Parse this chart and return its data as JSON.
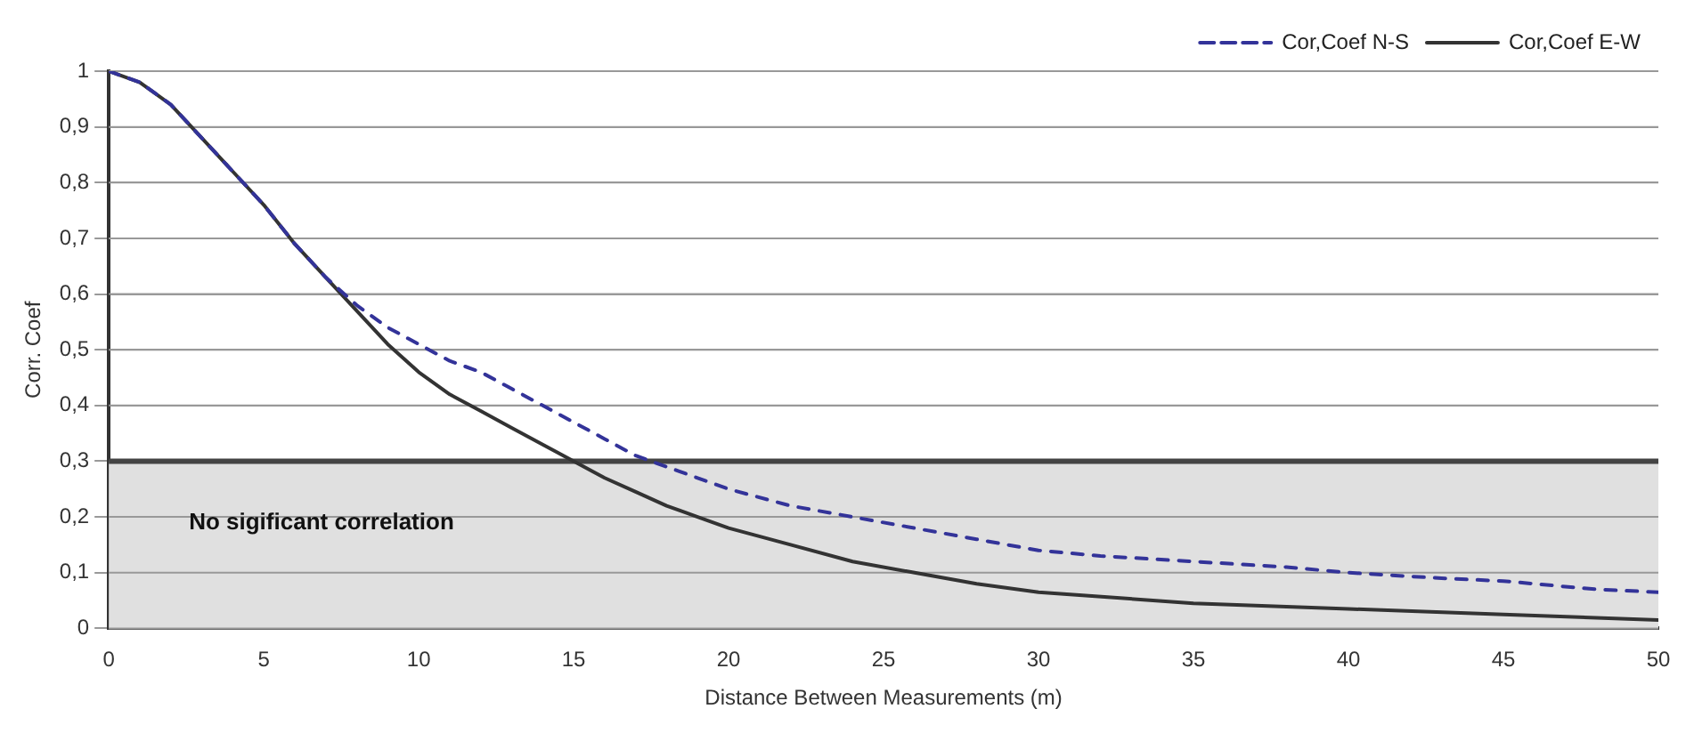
{
  "chart_data": {
    "type": "line",
    "xlabel": "Distance Between Measurements (m)",
    "ylabel": "Corr. Coef",
    "xlim": [
      0,
      50
    ],
    "xticks": [
      0,
      5,
      10,
      15,
      20,
      25,
      30,
      35,
      40,
      45,
      50
    ],
    "ylim": [
      0,
      1
    ],
    "yticks": [
      {
        "value": 0,
        "label": "0"
      },
      {
        "value": 0.1,
        "label": "0,1"
      },
      {
        "value": 0.2,
        "label": "0,2"
      },
      {
        "value": 0.3,
        "label": "0,3"
      },
      {
        "value": 0.4,
        "label": "0,4"
      },
      {
        "value": 0.5,
        "label": "0,5"
      },
      {
        "value": 0.6,
        "label": "0,6"
      },
      {
        "value": 0.7,
        "label": "0,7"
      },
      {
        "value": 0.8,
        "label": "0,8"
      },
      {
        "value": 0.9,
        "label": "0,9"
      },
      {
        "value": 1,
        "label": "1"
      }
    ],
    "grid": "y",
    "legend": "top right",
    "marker": "none",
    "ref_lines": [
      {
        "axis": "y",
        "value": 0.3,
        "color": "#444444"
      }
    ],
    "bands": [
      {
        "axis": "y",
        "from": 0,
        "to": 0.3,
        "label": "No sigificant correlation",
        "color": "#e0e0e0"
      }
    ],
    "series": [
      {
        "name": "Cor,Coef N-S",
        "color": "#333399",
        "line_style": "dashed",
        "x": [
          0,
          1,
          2,
          3,
          4,
          5,
          6,
          7,
          8,
          9,
          10,
          11,
          12,
          13,
          14,
          15,
          16,
          17,
          18,
          19,
          20,
          22,
          24,
          26,
          28,
          30,
          32,
          35,
          38,
          40,
          43,
          45,
          48,
          50
        ],
        "values": [
          1,
          0.98,
          0.94,
          0.88,
          0.82,
          0.76,
          0.69,
          0.63,
          0.58,
          0.54,
          0.51,
          0.48,
          0.46,
          0.43,
          0.4,
          0.37,
          0.34,
          0.31,
          0.29,
          0.27,
          0.25,
          0.22,
          0.2,
          0.18,
          0.16,
          0.14,
          0.13,
          0.12,
          0.11,
          0.1,
          0.09,
          0.085,
          0.07,
          0.065
        ]
      },
      {
        "name": "Cor,Coef E-W",
        "color": "#333333",
        "line_style": "solid",
        "x": [
          0,
          1,
          2,
          3,
          4,
          5,
          6,
          7,
          8,
          9,
          10,
          11,
          12,
          13,
          14,
          15,
          16,
          17,
          18,
          19,
          20,
          22,
          24,
          26,
          28,
          30,
          35,
          40,
          45,
          50
        ],
        "values": [
          1,
          0.98,
          0.94,
          0.88,
          0.82,
          0.76,
          0.69,
          0.63,
          0.57,
          0.51,
          0.46,
          0.42,
          0.39,
          0.36,
          0.33,
          0.3,
          0.27,
          0.245,
          0.22,
          0.2,
          0.18,
          0.15,
          0.12,
          0.1,
          0.08,
          0.065,
          0.045,
          0.035,
          0.025,
          0.015
        ]
      }
    ]
  }
}
